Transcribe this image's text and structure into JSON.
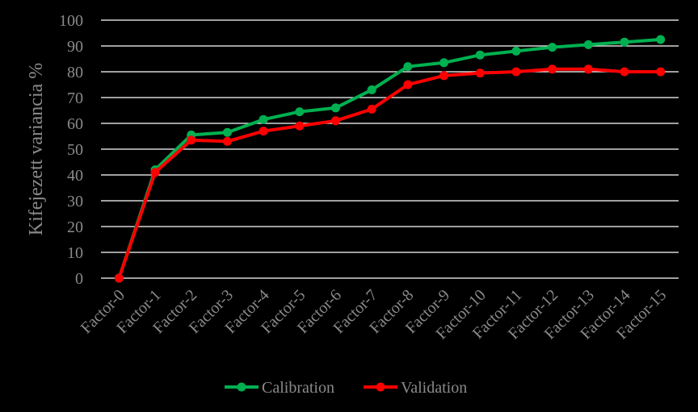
{
  "chart_data": {
    "type": "line",
    "title": "",
    "xlabel": "",
    "ylabel": "Kifejezett variancia %",
    "ylim": [
      0,
      100
    ],
    "yticks": [
      0,
      10,
      20,
      30,
      40,
      50,
      60,
      70,
      80,
      90,
      100
    ],
    "grid": true,
    "legend_position": "bottom",
    "categories": [
      "Factor-0",
      "Factor-1",
      "Factor-2",
      "Factor-3",
      "Factor-4",
      "Factor-5",
      "Factor-6",
      "Factor-7",
      "Factor-8",
      "Factor-9",
      "Factor-10",
      "Factor-11",
      "Factor-12",
      "Factor-13",
      "Factor-14",
      "Factor-15"
    ],
    "series": [
      {
        "name": "Calibration",
        "color": "#00b050",
        "values": [
          0,
          42,
          55.5,
          56.5,
          61.5,
          64.5,
          66,
          73,
          82,
          83.5,
          86.5,
          88,
          89.5,
          90.5,
          91.5,
          92.5
        ]
      },
      {
        "name": "Validation",
        "color": "#ff0000",
        "values": [
          0,
          41,
          53.5,
          53,
          57,
          59,
          61,
          65.5,
          75,
          78.5,
          79.5,
          80,
          81,
          81,
          80,
          80
        ]
      }
    ],
    "colors": {
      "background": "#000000",
      "gridline": "#ffffff",
      "text": "#8a8a8a"
    }
  }
}
